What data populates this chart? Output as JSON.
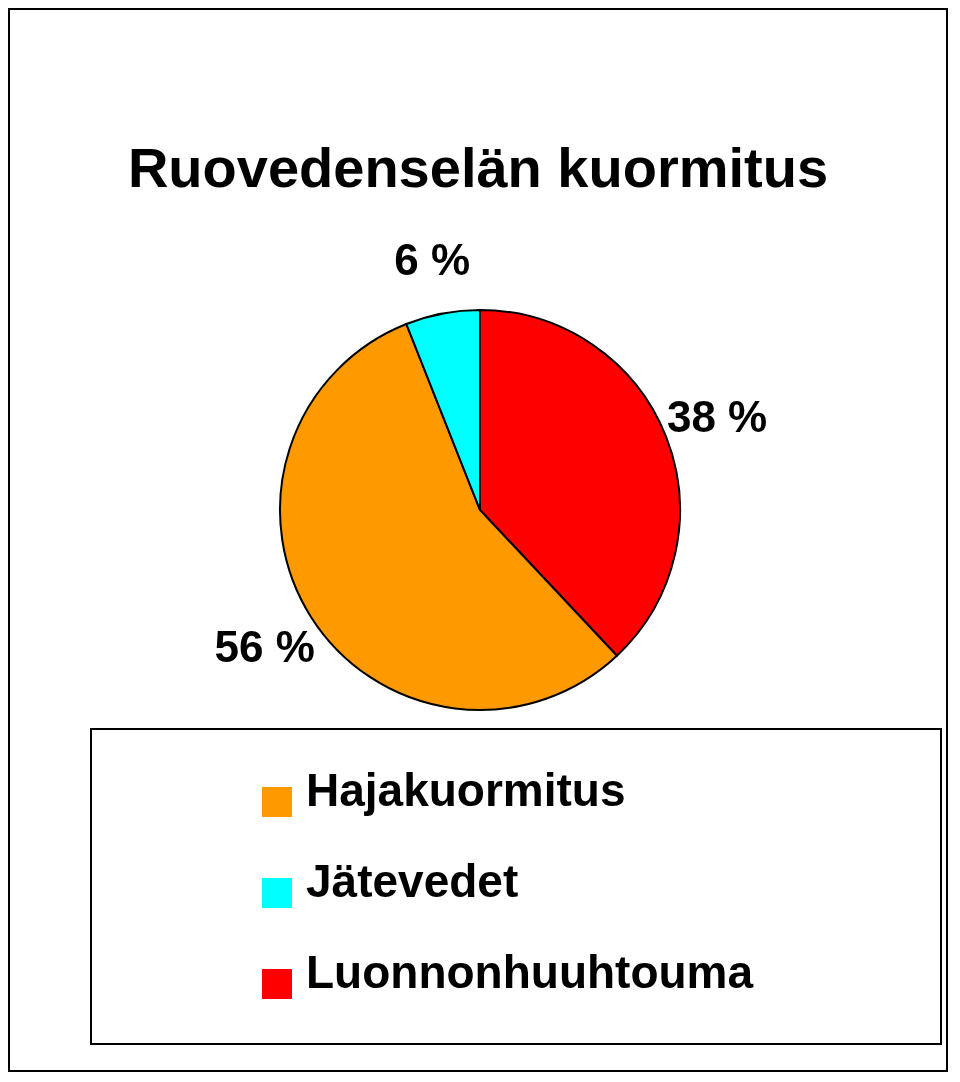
{
  "chart_data": {
    "type": "pie",
    "title": "Ruovedenselän kuormitus",
    "categories": [
      "Luonnonhuuhtouma",
      "Hajakuormitus",
      "Jätevedet"
    ],
    "values": [
      38,
      56,
      6
    ],
    "colors": [
      "#ff0000",
      "#ff9900",
      "#00ffff"
    ],
    "value_labels": [
      "38 %",
      "56 %",
      "6 %"
    ],
    "legend": "bottom"
  }
}
